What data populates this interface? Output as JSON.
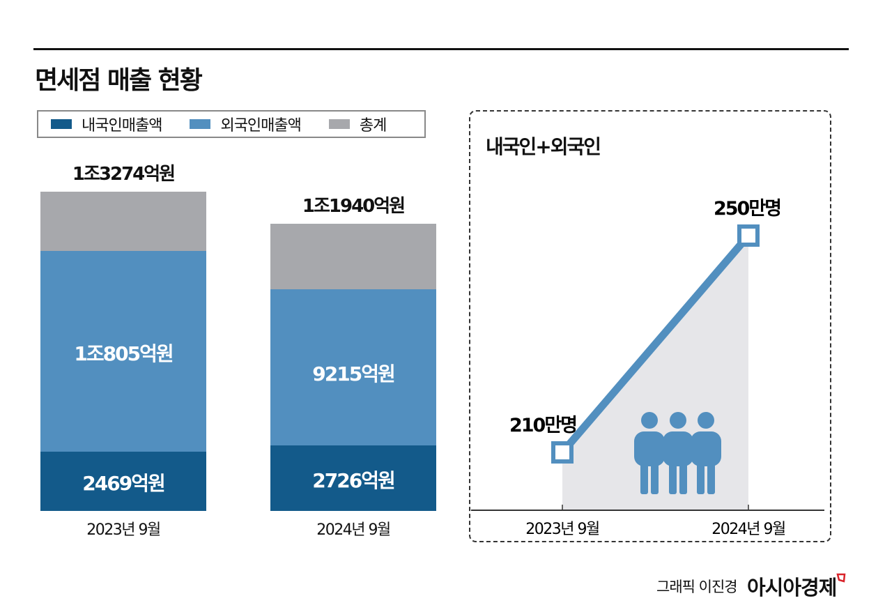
{
  "title": "면세점 매출 현황",
  "legend": [
    {
      "label": "내국인매출액",
      "color": "#135a8a"
    },
    {
      "label": "외국인매출액",
      "color": "#528fbf"
    },
    {
      "label": "총계",
      "color": "#a7a8ac"
    }
  ],
  "chart_data": [
    {
      "type": "bar",
      "stacked": true,
      "categories": [
        "2023년 9월",
        "2024년 9월"
      ],
      "series": [
        {
          "name": "내국인매출액",
          "values": [
            2469,
            2726
          ],
          "labels": [
            "2469억원",
            "2726억원"
          ]
        },
        {
          "name": "외국인매출액",
          "values": [
            10805,
            9215
          ],
          "labels": [
            "1조805억원",
            "9215억원"
          ]
        }
      ],
      "totals": [
        13274,
        11940
      ],
      "total_labels": [
        "1조3274억원",
        "1조1940억원"
      ],
      "unit": "억원"
    },
    {
      "type": "area",
      "title": "내국인+외국인",
      "categories": [
        "2023년 9월",
        "2024년 9월"
      ],
      "values": [
        210,
        250
      ],
      "labels": [
        "210만명",
        "250만명"
      ],
      "line_color": "#528fbf",
      "fill_color": "#e6e6e9",
      "icon": "people-group-icon"
    }
  ],
  "credit": "그래픽 이진경",
  "logo": "아시아경제"
}
